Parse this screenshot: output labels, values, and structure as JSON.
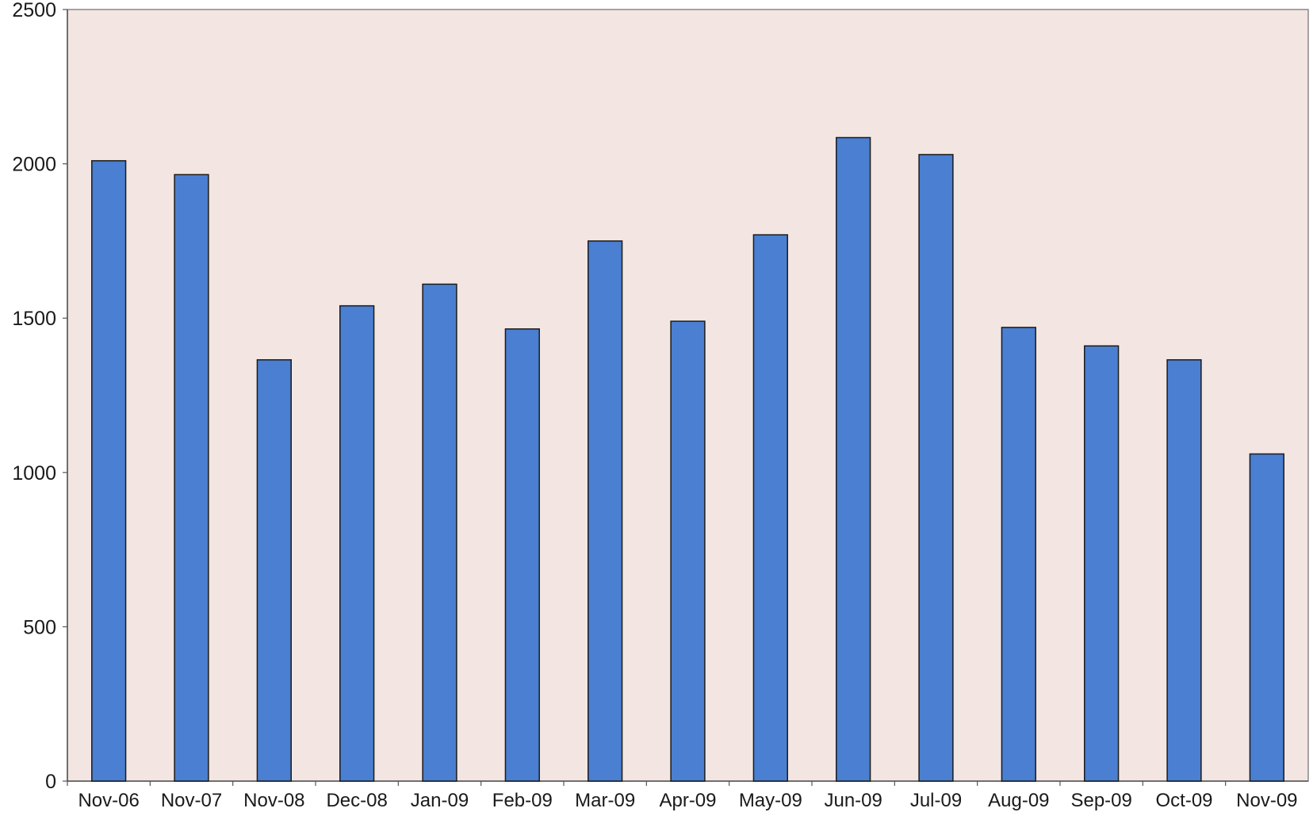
{
  "chart_data": {
    "type": "bar",
    "title": "",
    "xlabel": "",
    "ylabel": "",
    "categories": [
      "Nov-06",
      "Nov-07",
      "Nov-08",
      "Dec-08",
      "Jan-09",
      "Feb-09",
      "Mar-09",
      "Apr-09",
      "May-09",
      "Jun-09",
      "Jul-09",
      "Aug-09",
      "Sep-09",
      "Oct-09",
      "Nov-09"
    ],
    "series": [
      {
        "values": [
          2010,
          1965,
          1365,
          1540,
          1610,
          1465,
          1750,
          1490,
          1770,
          2085,
          2030,
          1470,
          1410,
          1365,
          1060
        ]
      }
    ],
    "ylim": [
      0,
      2500
    ],
    "yticks": [
      "0",
      "500",
      "1000",
      "1500",
      "2000",
      "2500"
    ],
    "grid": false,
    "legend": "none",
    "colors": {
      "bar": "#4a7fd1",
      "plot_background": "#f3e5e1",
      "frame": "#888888"
    }
  }
}
